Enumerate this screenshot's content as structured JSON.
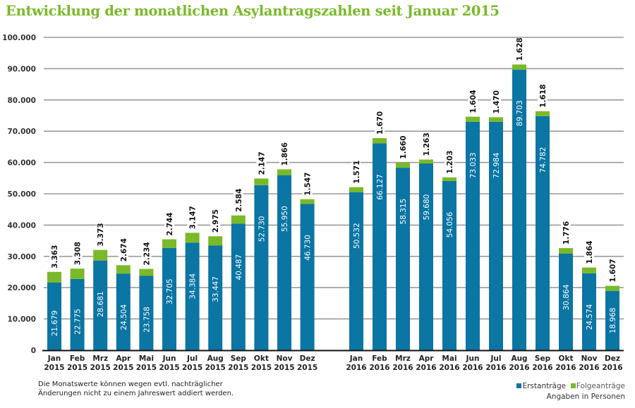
{
  "chart_data": {
    "type": "bar",
    "stacked": true,
    "title": "Entwicklung der monatlichen Asylantragszahlen seit Januar 2015",
    "xlabel": "",
    "ylabel": "",
    "ylim": [
      0,
      100000
    ],
    "yticks": [
      0,
      10000,
      20000,
      30000,
      40000,
      50000,
      60000,
      70000,
      80000,
      90000,
      100000
    ],
    "ytick_labels": [
      "0",
      "10.000",
      "20.000",
      "30.000",
      "40.000",
      "50.000",
      "60.000",
      "70.000",
      "80.000",
      "90.000",
      "100.000"
    ],
    "grid": true,
    "groups": [
      {
        "year": "2015",
        "categories": [
          "Jan|2015",
          "Feb|2015",
          "Mrz|2015",
          "Apr|2015",
          "Mai|2015",
          "Jun|2015",
          "Jul|2015",
          "Aug|2015",
          "Sep|2015",
          "Okt|2015",
          "Nov|2015",
          "Dez|2015"
        ]
      },
      {
        "year": "2016",
        "categories": [
          "Jan|2016",
          "Feb|2016",
          "Mrz|2016",
          "Apr|2016",
          "Mai|2016",
          "Jun|2016",
          "Jul|2016",
          "Aug|2016",
          "Sep|2016",
          "Okt|2016",
          "Nov|2016",
          "Dez|2016"
        ]
      }
    ],
    "series": [
      {
        "name": "Erstanträge",
        "color": "#0b75a4",
        "values": [
          21679,
          22775,
          28681,
          24504,
          23758,
          32705,
          34384,
          33447,
          40487,
          52730,
          55950,
          46730,
          50532,
          66127,
          58315,
          59680,
          54056,
          73033,
          72984,
          89703,
          74782,
          30864,
          24574,
          18968
        ],
        "labels": [
          "21.679",
          "22.775",
          "28.681",
          "24.504",
          "23.758",
          "32.705",
          "34.384",
          "33.447",
          "40.487",
          "52.730",
          "55.950",
          "46.730",
          "50.532",
          "66.127",
          "58.315",
          "59.680",
          "54.056",
          "73.033",
          "72.984",
          "89.703",
          "74.782",
          "30.864",
          "24.574",
          "18.968"
        ]
      },
      {
        "name": "Folgeanträge",
        "color": "#7ab929",
        "values": [
          3363,
          3308,
          3373,
          2674,
          2234,
          2744,
          3147,
          2975,
          2584,
          2147,
          1866,
          1547,
          1571,
          1670,
          1660,
          1263,
          1203,
          1604,
          1470,
          1628,
          1618,
          1776,
          1864,
          1607
        ],
        "labels": [
          "3.363",
          "3.308",
          "3.373",
          "2.674",
          "2.234",
          "2.744",
          "3.147",
          "2.975",
          "2.584",
          "2.147",
          "1.866",
          "1.547",
          "1.571",
          "1.670",
          "1.660",
          "1.263",
          "1.203",
          "1.604",
          "1.470",
          "1.628",
          "1.618",
          "1.776",
          "1.864",
          "1.607"
        ]
      }
    ],
    "legend": {
      "placement": "bottom-right",
      "entries": [
        "Erstanträge",
        "Folgeanträge"
      ]
    },
    "annotations": {
      "unit_note": "Angaben in Personen",
      "footnote": "Die Monatswerte können wegen evtl. nachträglicher Änderungen nicht zu einem Jahreswert addiert werden."
    }
  },
  "footnote_line1": "Die Monatswerte können wegen evtl. nachträglicher",
  "footnote_line2": "Änderungen nicht zu einem Jahreswert addiert werden.",
  "legend_erst": "Erstanträge",
  "legend_folge": "Folgeanträge",
  "unit_note": "Angaben in Personen"
}
